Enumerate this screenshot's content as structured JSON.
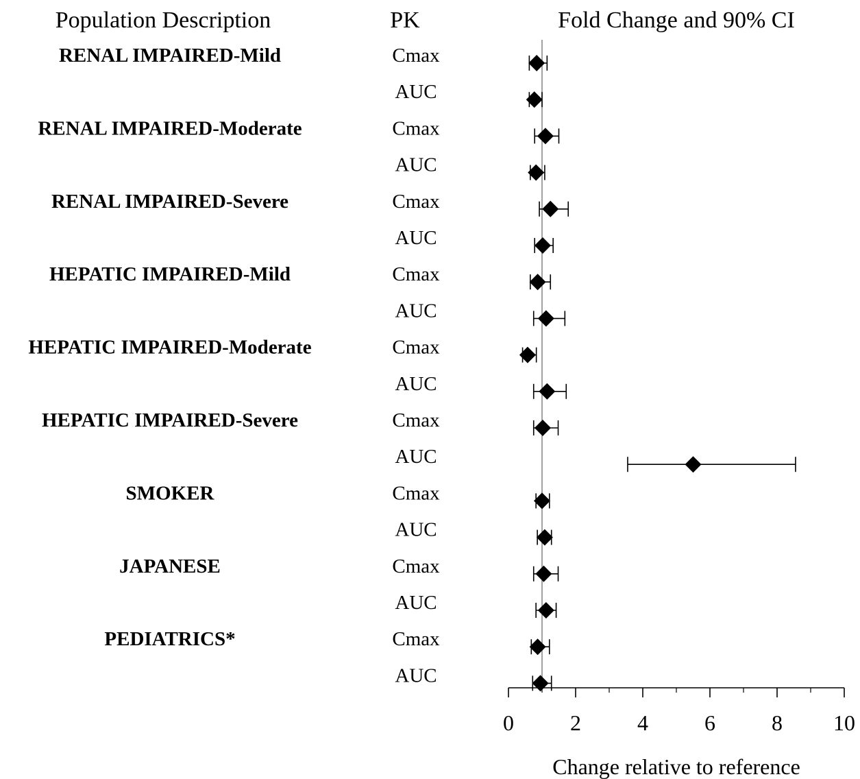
{
  "chart_data": {
    "type": "forest",
    "title": "Fold Change and 90% CI",
    "column_headers": {
      "population": "Population Description",
      "pk": "PK",
      "effect": "Fold Change and 90% CI"
    },
    "xlabel": "Change relative to reference",
    "xlim": [
      0,
      10
    ],
    "xticks": [
      0,
      2,
      4,
      6,
      8,
      10
    ],
    "reference_line": 1,
    "populations": [
      "RENAL IMPAIRED-Mild",
      "RENAL IMPAIRED-Moderate",
      "RENAL IMPAIRED-Severe",
      "HEPATIC IMPAIRED-Mild",
      "HEPATIC IMPAIRED-Moderate",
      "HEPATIC IMPAIRED-Severe",
      "SMOKER",
      "JAPANESE",
      "PEDIATRICS*"
    ],
    "rows": [
      {
        "population": "RENAL IMPAIRED-Mild",
        "pk": "Cmax",
        "estimate": 0.84,
        "lower": 0.62,
        "upper": 1.15
      },
      {
        "population": "RENAL IMPAIRED-Mild",
        "pk": "AUC",
        "estimate": 0.77,
        "lower": 0.62,
        "upper": 1.0
      },
      {
        "population": "RENAL IMPAIRED-Moderate",
        "pk": "Cmax",
        "estimate": 1.1,
        "lower": 0.78,
        "upper": 1.5
      },
      {
        "population": "RENAL IMPAIRED-Moderate",
        "pk": "AUC",
        "estimate": 0.82,
        "lower": 0.65,
        "upper": 1.08
      },
      {
        "population": "RENAL IMPAIRED-Severe",
        "pk": "Cmax",
        "estimate": 1.25,
        "lower": 0.92,
        "upper": 1.78
      },
      {
        "population": "RENAL IMPAIRED-Severe",
        "pk": "AUC",
        "estimate": 1.02,
        "lower": 0.78,
        "upper": 1.33
      },
      {
        "population": "HEPATIC IMPAIRED-Mild",
        "pk": "Cmax",
        "estimate": 0.87,
        "lower": 0.65,
        "upper": 1.25
      },
      {
        "population": "HEPATIC IMPAIRED-Mild",
        "pk": "AUC",
        "estimate": 1.12,
        "lower": 0.75,
        "upper": 1.68
      },
      {
        "population": "HEPATIC IMPAIRED-Moderate",
        "pk": "Cmax",
        "estimate": 0.57,
        "lower": 0.42,
        "upper": 0.83
      },
      {
        "population": "HEPATIC IMPAIRED-Moderate",
        "pk": "AUC",
        "estimate": 1.15,
        "lower": 0.75,
        "upper": 1.72
      },
      {
        "population": "HEPATIC IMPAIRED-Severe",
        "pk": "Cmax",
        "estimate": 1.02,
        "lower": 0.75,
        "upper": 1.48
      },
      {
        "population": "HEPATIC IMPAIRED-Severe",
        "pk": "AUC",
        "estimate": 5.5,
        "lower": 3.55,
        "upper": 8.55
      },
      {
        "population": "SMOKER",
        "pk": "Cmax",
        "estimate": 1.0,
        "lower": 0.82,
        "upper": 1.22
      },
      {
        "population": "SMOKER",
        "pk": "AUC",
        "estimate": 1.08,
        "lower": 0.86,
        "upper": 1.28
      },
      {
        "population": "JAPANESE",
        "pk": "Cmax",
        "estimate": 1.05,
        "lower": 0.75,
        "upper": 1.48
      },
      {
        "population": "JAPANESE",
        "pk": "AUC",
        "estimate": 1.12,
        "lower": 0.82,
        "upper": 1.42
      },
      {
        "population": "PEDIATRICS*",
        "pk": "Cmax",
        "estimate": 0.87,
        "lower": 0.68,
        "upper": 1.22
      },
      {
        "population": "PEDIATRICS*",
        "pk": "AUC",
        "estimate": 0.95,
        "lower": 0.72,
        "upper": 1.28
      }
    ]
  }
}
